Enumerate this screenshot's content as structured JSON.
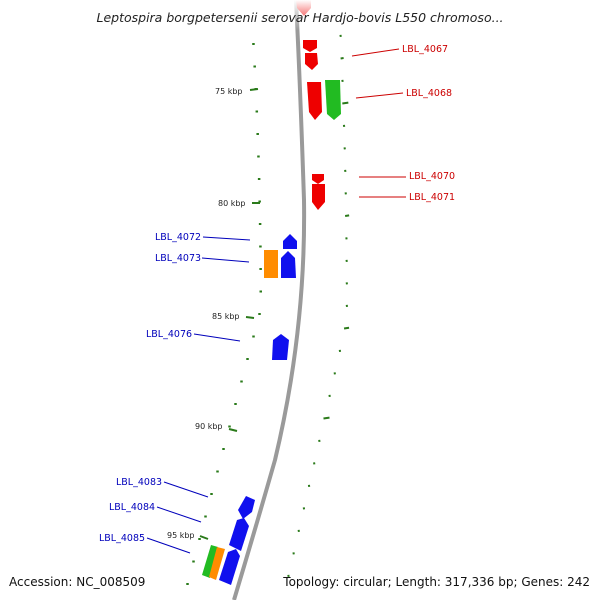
{
  "title": "Leptospira borgpetersenii serovar Hardjo-bovis L550 chromoso...",
  "footer": {
    "accession": "Accession: NC_008509",
    "summary": "Topology: circular; Length: 317,336 bp; Genes: 242"
  },
  "colors": {
    "backbone": "#9a9a9a",
    "tick": "#2a7a1a",
    "forward_label": "#cc0000",
    "reverse_label": "#0000bb",
    "red": "#ee0000",
    "green": "#22bb22",
    "blue": "#1010ee",
    "orange": "#ff8c00"
  },
  "tick_labels": [
    "75 kbp",
    "80 kbp",
    "85 kbp",
    "90 kbp",
    "95 kbp"
  ],
  "forward_genes": [
    "LBL_4067",
    "LBL_4068",
    "LBL_4070",
    "LBL_4071"
  ],
  "reverse_genes": [
    "LBL_4072",
    "LBL_4073",
    "LBL_4076",
    "LBL_4083",
    "LBL_4084",
    "LBL_4085"
  ]
}
